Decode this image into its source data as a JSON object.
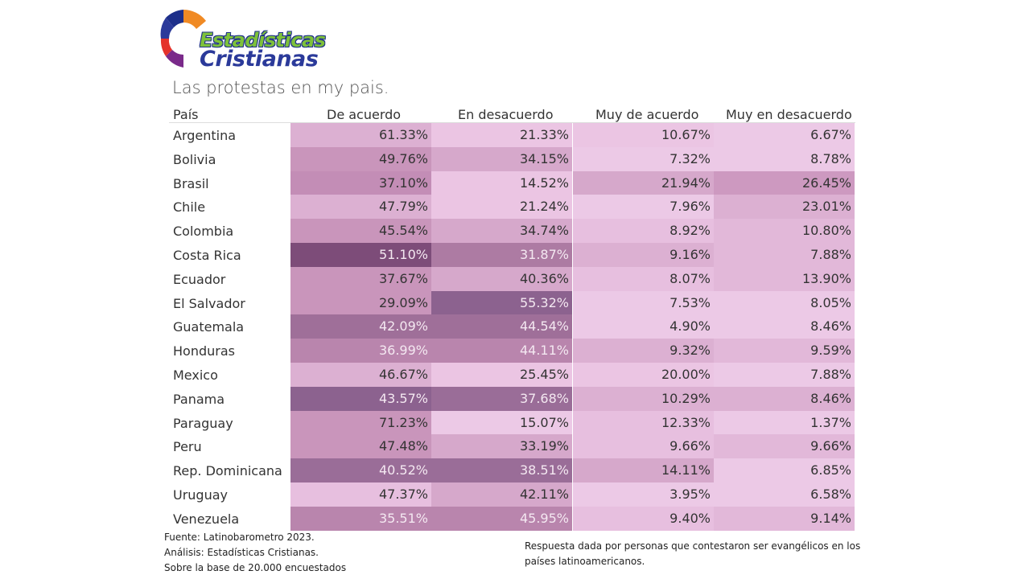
{
  "logo": {
    "line1": "Estadísticas",
    "line2": "Cristianas"
  },
  "title": "Las protestas en my pais.",
  "chart_data": {
    "type": "table",
    "columns": [
      "País",
      "De acuerdo",
      "En desacuerdo",
      "Muy de acuerdo",
      "Muy en desacuerdo"
    ],
    "rows": [
      {
        "country": "Argentina",
        "values": [
          "61.33%",
          "21.33%",
          "10.67%",
          "6.67%"
        ]
      },
      {
        "country": "Bolivia",
        "values": [
          "49.76%",
          "34.15%",
          "7.32%",
          "8.78%"
        ]
      },
      {
        "country": "Brasil",
        "values": [
          "37.10%",
          "14.52%",
          "21.94%",
          "26.45%"
        ]
      },
      {
        "country": "Chile",
        "values": [
          "47.79%",
          "21.24%",
          "7.96%",
          "23.01%"
        ]
      },
      {
        "country": "Colombia",
        "values": [
          "45.54%",
          "34.74%",
          "8.92%",
          "10.80%"
        ]
      },
      {
        "country": "Costa Rica",
        "values": [
          "51.10%",
          "31.87%",
          "9.16%",
          "7.88%"
        ]
      },
      {
        "country": "Ecuador",
        "values": [
          "37.67%",
          "40.36%",
          "8.07%",
          "13.90%"
        ]
      },
      {
        "country": "El Salvador",
        "values": [
          "29.09%",
          "55.32%",
          "7.53%",
          "8.05%"
        ]
      },
      {
        "country": "Guatemala",
        "values": [
          "42.09%",
          "44.54%",
          "4.90%",
          "8.46%"
        ]
      },
      {
        "country": "Honduras",
        "values": [
          "36.99%",
          "44.11%",
          "9.32%",
          "9.59%"
        ]
      },
      {
        "country": "Mexico",
        "values": [
          "46.67%",
          "25.45%",
          "20.00%",
          "7.88%"
        ]
      },
      {
        "country": "Panama",
        "values": [
          "43.57%",
          "37.68%",
          "10.29%",
          "8.46%"
        ]
      },
      {
        "country": "Paraguay",
        "values": [
          "71.23%",
          "15.07%",
          "12.33%",
          "1.37%"
        ]
      },
      {
        "country": "Peru",
        "values": [
          "47.48%",
          "33.19%",
          "9.66%",
          "9.66%"
        ]
      },
      {
        "country": "Rep. Dominicana",
        "values": [
          "40.52%",
          "38.51%",
          "14.11%",
          "6.85%"
        ]
      },
      {
        "country": "Uruguay",
        "values": [
          "47.37%",
          "42.11%",
          "3.95%",
          "6.58%"
        ]
      },
      {
        "country": "Venezuela",
        "values": [
          "35.51%",
          "45.95%",
          "9.40%",
          "9.14%"
        ]
      }
    ],
    "cell_colors": [
      [
        "#dcb0d2",
        "#ebc5e3",
        "#ebc5e3",
        "#ecc9e6"
      ],
      [
        "#c995bb",
        "#d6a8cb",
        "#ecc9e6",
        "#ecc9e6"
      ],
      [
        "#c38db6",
        "#ebc5e3",
        "#d6a8cb",
        "#cd99c0"
      ],
      [
        "#dcb0d2",
        "#ebc5e3",
        "#ecc9e6",
        "#dcb0d2"
      ],
      [
        "#c995bb",
        "#d6a8cb",
        "#e7bfdf",
        "#e2b8d9"
      ],
      [
        "#7d4c79",
        "#ad7ba3",
        "#dcb0d2",
        "#e2b8d9"
      ],
      [
        "#c995bb",
        "#d6a8cb",
        "#e7bfdf",
        "#e2b8d9"
      ],
      [
        "#c995bb",
        "#8c628f",
        "#ecc9e6",
        "#ecc9e6"
      ],
      [
        "#9f6f99",
        "#9f6f99",
        "#ecc9e6",
        "#ecc9e6"
      ],
      [
        "#b985ad",
        "#b985ad",
        "#dcb0d2",
        "#e2b8d9"
      ],
      [
        "#dcb0d2",
        "#ebc5e3",
        "#ebc5e3",
        "#ecc9e6"
      ],
      [
        "#8c628f",
        "#9a6d98",
        "#dcb0d2",
        "#dcb0d2"
      ],
      [
        "#c995bb",
        "#ecc9e6",
        "#e7bfdf",
        "#ecc9e6"
      ],
      [
        "#c995bb",
        "#d6a8cb",
        "#e7bfdf",
        "#e2b8d9"
      ],
      [
        "#9a6d98",
        "#9a6d98",
        "#d6a8cb",
        "#ecc9e6"
      ],
      [
        "#e7bfdf",
        "#d6a8cb",
        "#ecc9e6",
        "#ecc9e6"
      ],
      [
        "#b985ad",
        "#b985ad",
        "#e7bfdf",
        "#e2b8d9"
      ]
    ]
  },
  "footer": {
    "source": "Fuente: Latinobarometro 2023.",
    "analysis": "Análisis: Estadísticas Cristianas.",
    "base": "Sobre la base de 20.000 encuestados",
    "note": "Respuesta dada por personas que contestaron ser evangélicos en los países latinoamericanos."
  }
}
